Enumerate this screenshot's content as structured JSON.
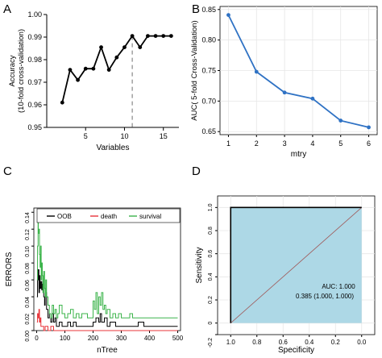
{
  "chart_data": [
    {
      "panel": "A",
      "type": "line",
      "xlabel": "Variables",
      "ylabel": [
        "Accuracy",
        "(10-fold cross-validation)"
      ],
      "xlim": [
        0,
        17
      ],
      "ylim": [
        0.95,
        1.0
      ],
      "xticks": [
        5,
        10,
        15
      ],
      "yticks": [
        0.95,
        0.96,
        0.97,
        0.98,
        0.99,
        1.0
      ],
      "ytick_labels": [
        "0.95",
        "0.96",
        "0.97",
        "0.98",
        "0.99",
        "1.00"
      ],
      "color": "#000000",
      "marker_line_x": 11,
      "x": [
        2,
        3,
        4,
        5,
        6,
        7,
        8,
        9,
        10,
        11,
        12,
        13,
        14,
        15,
        16
      ],
      "y": [
        0.961,
        0.9755,
        0.971,
        0.976,
        0.976,
        0.9855,
        0.9755,
        0.981,
        0.9855,
        0.9905,
        0.9855,
        0.9905,
        0.9905,
        0.9905,
        0.9905
      ]
    },
    {
      "panel": "B",
      "type": "line",
      "xlabel": "mtry",
      "ylabel": "AUC( 5-fold Cross-Validation)",
      "xlim": [
        0.7,
        6.3
      ],
      "ylim": [
        0.645,
        0.855
      ],
      "xticks": [
        1,
        2,
        3,
        4,
        5,
        6
      ],
      "yticks": [
        0.65,
        0.7,
        0.75,
        0.8,
        0.85
      ],
      "ytick_labels": [
        "0.65",
        "0.70",
        "0.75",
        "0.80",
        "0.85"
      ],
      "grid": true,
      "color": "#2f72c4",
      "x": [
        1,
        2,
        3,
        4,
        5,
        6
      ],
      "y": [
        0.841,
        0.748,
        0.714,
        0.704,
        0.668,
        0.657
      ]
    },
    {
      "panel": "C",
      "type": "line",
      "xlabel": "nTree",
      "ylabel": "ERRORS",
      "xlim": [
        -10,
        510
      ],
      "ylim": [
        0,
        0.145
      ],
      "xticks": [
        0,
        100,
        200,
        300,
        400,
        500
      ],
      "yticks": [
        0,
        0.02,
        0.04,
        0.06,
        0.08,
        0.1,
        0.12,
        0.14
      ],
      "ytick_labels": [
        "0.00",
        "0.02",
        "0.04",
        "0.06",
        "0.08",
        "0.10",
        "0.12",
        "0.14"
      ],
      "legend": "top",
      "series": [
        {
          "name": "OOB",
          "color": "#000000",
          "x": [
            1,
            3,
            5,
            8,
            10,
            12,
            15,
            18,
            20,
            25,
            28,
            30,
            35,
            40,
            45,
            50,
            55,
            60,
            65,
            70,
            80,
            90,
            100,
            110,
            120,
            130,
            140,
            150,
            160,
            170,
            180,
            200,
            210,
            220,
            225,
            230,
            240,
            250,
            260,
            280,
            300,
            320,
            340,
            360,
            380,
            400,
            420,
            440,
            460,
            480,
            500
          ],
          "y": [
            0.04,
            0.06,
            0.072,
            0.045,
            0.065,
            0.05,
            0.058,
            0.048,
            0.055,
            0.04,
            0.03,
            0.045,
            0.025,
            0.015,
            0.02,
            0.01,
            0.02,
            0.01,
            0.015,
            0.005,
            0.01,
            0.005,
            0.005,
            0.01,
            0.005,
            0.01,
            0.005,
            0.005,
            0.005,
            0.005,
            0.005,
            0.01,
            0.015,
            0.01,
            0.02,
            0.01,
            0.015,
            0.005,
            0.01,
            0.005,
            0.005,
            0.005,
            0.005,
            0.01,
            0.005,
            0.005,
            0.005,
            0.005,
            0.005,
            0.005,
            0.005
          ]
        },
        {
          "name": "death",
          "color": "#e8343a",
          "x": [
            1,
            3,
            5,
            8,
            10,
            12,
            15,
            20,
            25,
            30,
            40,
            50,
            60,
            80,
            100,
            150,
            200,
            250,
            300,
            350,
            400,
            450,
            500
          ],
          "y": [
            0.01,
            0.02,
            0.015,
            0.025,
            0.01,
            0.015,
            0.005,
            0.005,
            0.0,
            0.005,
            0.0,
            0.005,
            0.0,
            0.0,
            0.0,
            0.0,
            0.0,
            0.0,
            0.0,
            0.0,
            0.0,
            0.0,
            0.0
          ]
        },
        {
          "name": "survival",
          "color": "#3cb44b",
          "x": [
            1,
            3,
            5,
            6,
            8,
            10,
            12,
            14,
            16,
            18,
            20,
            22,
            25,
            28,
            30,
            32,
            35,
            40,
            45,
            50,
            55,
            60,
            65,
            70,
            75,
            80,
            90,
            100,
            110,
            120,
            130,
            140,
            150,
            160,
            180,
            200,
            205,
            210,
            215,
            220,
            225,
            230,
            235,
            240,
            245,
            250,
            260,
            270,
            280,
            290,
            300,
            320,
            330,
            340,
            360,
            380,
            400,
            420,
            440,
            460,
            480,
            500
          ],
          "y": [
            0.06,
            0.1,
            0.135,
            0.115,
            0.12,
            0.09,
            0.075,
            0.1,
            0.06,
            0.08,
            0.065,
            0.045,
            0.07,
            0.05,
            0.04,
            0.06,
            0.04,
            0.03,
            0.02,
            0.015,
            0.03,
            0.02,
            0.025,
            0.015,
            0.02,
            0.03,
            0.02,
            0.015,
            0.02,
            0.025,
            0.015,
            0.02,
            0.015,
            0.02,
            0.015,
            0.035,
            0.025,
            0.045,
            0.02,
            0.04,
            0.03,
            0.045,
            0.025,
            0.03,
            0.02,
            0.025,
            0.015,
            0.02,
            0.015,
            0.02,
            0.015,
            0.015,
            0.02,
            0.015,
            0.015,
            0.015,
            0.015,
            0.015,
            0.015,
            0.015,
            0.015,
            0.015
          ]
        }
      ]
    },
    {
      "panel": "D",
      "type": "area",
      "xlabel": "Specificity",
      "ylabel": "Sensitivity",
      "xlim": [
        1.1,
        -0.1
      ],
      "ylim": [
        -0.1,
        1.1
      ],
      "xticks": [
        1.0,
        0.8,
        0.6,
        0.4,
        0.2,
        0.0
      ],
      "xtick_labels": [
        "1.0",
        "0.8",
        "0.6",
        "0.4",
        "0.2",
        "0.0"
      ],
      "yticks": [
        -0.2,
        0.0,
        0.2,
        0.4,
        0.6,
        0.8,
        1.0
      ],
      "ytick_labels": [
        "-0.2",
        "0",
        "0.2",
        "0.4",
        "0.6",
        "0.8",
        "1.0"
      ],
      "grid": true,
      "fill_color": "#add8e6",
      "roc_x": [
        1.0,
        1.0,
        0.0
      ],
      "roc_y": [
        0.0,
        1.0,
        1.0
      ],
      "auc_text": "AUC: 1.000",
      "threshold_text": "0.385 (1.000, 1.000)"
    }
  ],
  "panel_labels": {
    "a": "A",
    "b": "B",
    "c": "C",
    "d": "D"
  }
}
